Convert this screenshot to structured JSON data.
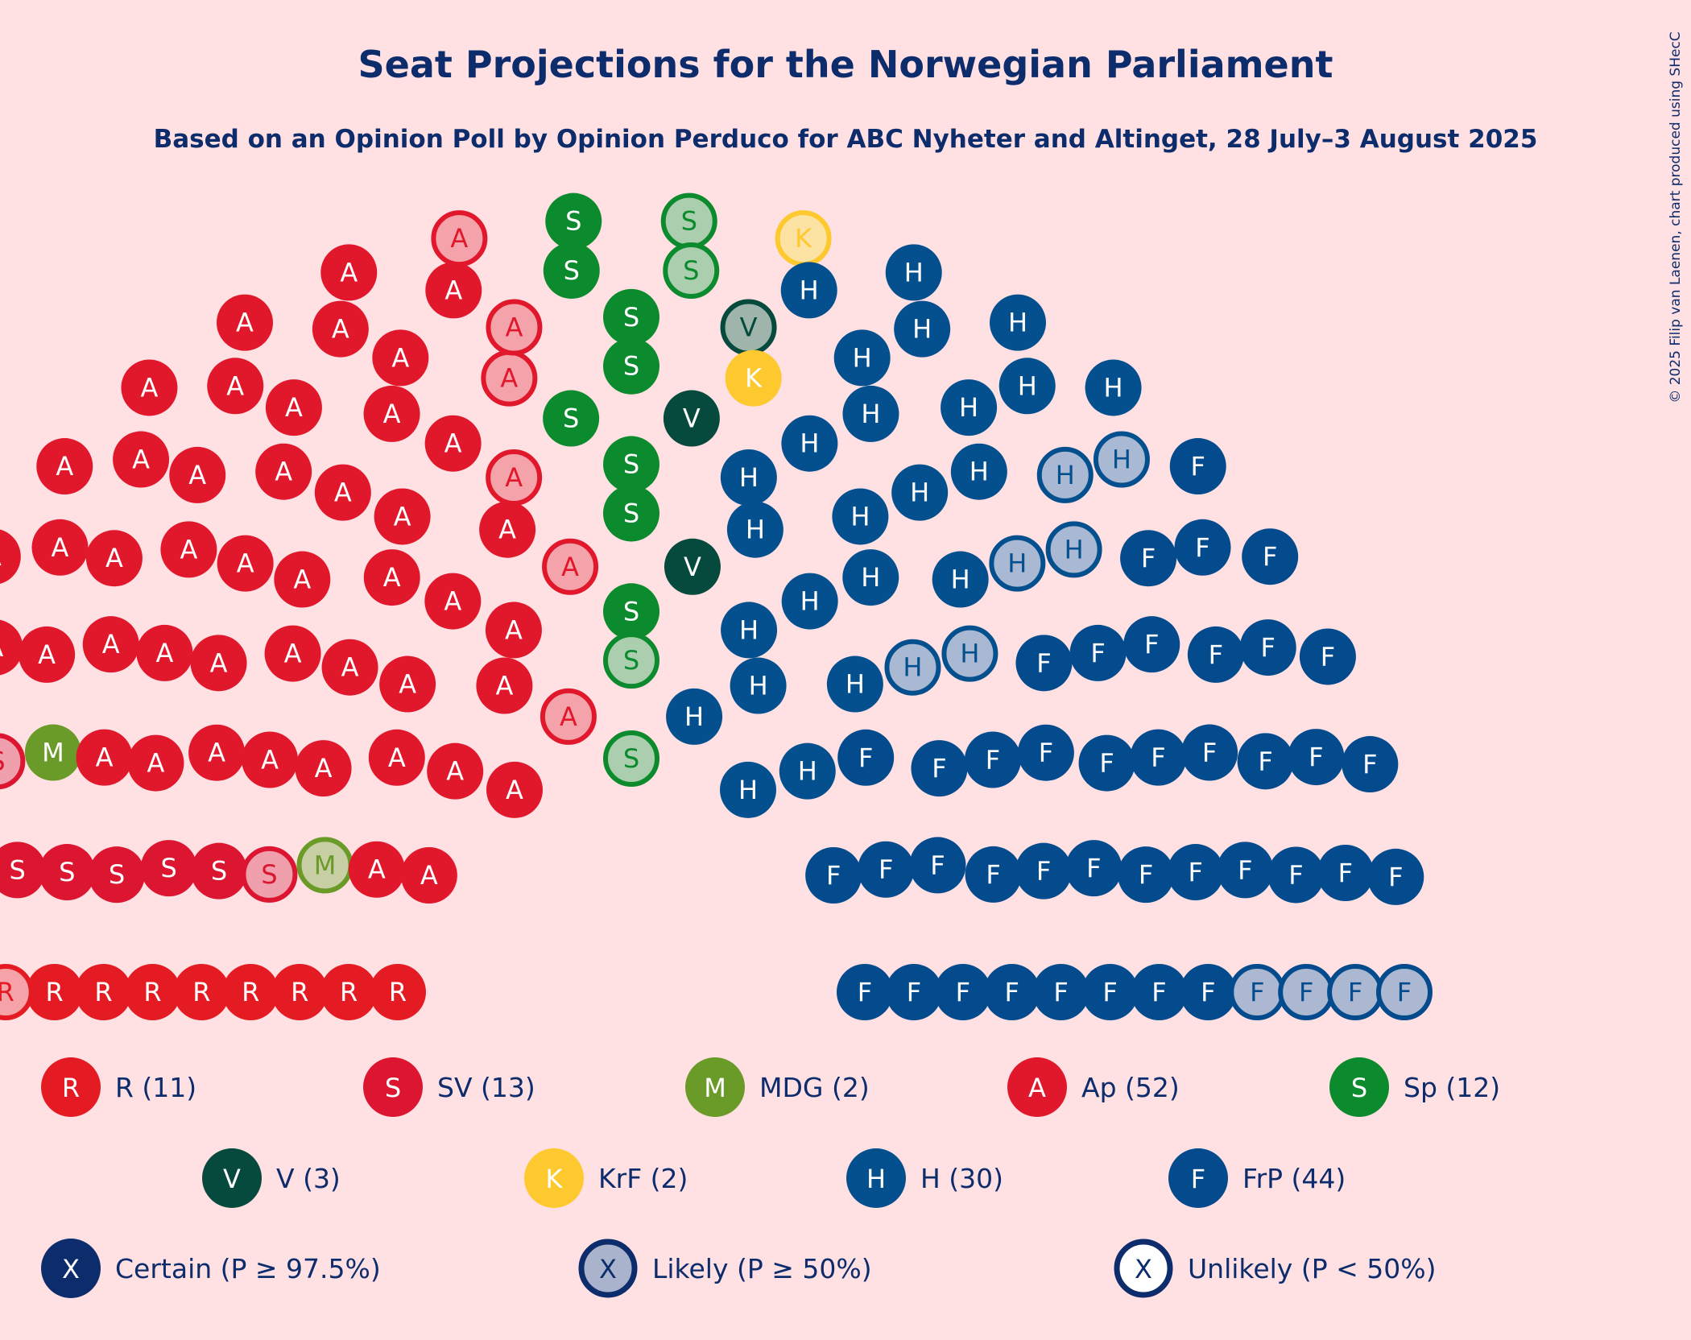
{
  "chart_data": {
    "type": "parliament",
    "title": "Seat Projections for the Norwegian Parliament",
    "subtitle": "Based on an Opinion Poll by Opinion Perduco for ABC Nyheter and Altinget, 28 July–3 August 2025",
    "copyright": "© 2025 Filip van Laenen, chart produced using SHecC",
    "total_seats": 169,
    "parties": [
      {
        "code": "R",
        "name": "R",
        "seats": 11,
        "likely": 2,
        "unlikely": 0,
        "color": "#E41B23",
        "light": "#F5A3A8"
      },
      {
        "code": "S",
        "name": "SV",
        "seats": 13,
        "likely": 3,
        "unlikely": 0,
        "color": "#DC1530",
        "light": "#F0A0AC"
      },
      {
        "code": "M",
        "name": "MDG",
        "seats": 2,
        "likely": 1,
        "unlikely": 0,
        "color": "#6A9A27",
        "light": "#C8CFA4"
      },
      {
        "code": "A",
        "name": "Ap",
        "seats": 52,
        "likely": 6,
        "unlikely": 0,
        "color": "#E1182C",
        "light": "#F5A3AB"
      },
      {
        "code": "S",
        "name": "Sp",
        "seats": 12,
        "likely": 4,
        "unlikely": 0,
        "color": "#0C8A2E",
        "light": "#ABCFAE"
      },
      {
        "code": "V",
        "name": "V",
        "seats": 3,
        "likely": 1,
        "unlikely": 0,
        "color": "#054A3C",
        "light": "#9FB5AC"
      },
      {
        "code": "K",
        "name": "KrF",
        "seats": 2,
        "likely": 1,
        "unlikely": 0,
        "color": "#FDC92E",
        "light": "#FCE3A3"
      },
      {
        "code": "H",
        "name": "H",
        "seats": 30,
        "likely": 6,
        "unlikely": 0,
        "color": "#04508F",
        "light": "#AAB9D3"
      },
      {
        "code": "F",
        "name": "FrP",
        "seats": 44,
        "likely": 4,
        "unlikely": 0,
        "color": "#034B8D",
        "light": "#ACB8D2"
      }
    ],
    "legend_parties": [
      {
        "code": "R",
        "label": "R (11)",
        "color": "#E41B23"
      },
      {
        "code": "S",
        "label": "SV (13)",
        "color": "#DC1530"
      },
      {
        "code": "M",
        "label": "MDG (2)",
        "color": "#6A9A27"
      },
      {
        "code": "A",
        "label": "Ap (52)",
        "color": "#E1182C"
      },
      {
        "code": "S",
        "label": "Sp (12)",
        "color": "#0C8A2E"
      },
      {
        "code": "V",
        "label": "V (3)",
        "color": "#054A3C"
      },
      {
        "code": "K",
        "label": "KrF (2)",
        "color": "#FDC92E"
      },
      {
        "code": "H",
        "label": "H (30)",
        "color": "#04508F"
      },
      {
        "code": "F",
        "label": "FrP (44)",
        "color": "#034B8D"
      }
    ],
    "legend_certainty": [
      {
        "code": "X",
        "label": "Certain (P ≥ 97.5%)",
        "style": "certain"
      },
      {
        "code": "X",
        "label": "Likely (P ≥ 50%)",
        "style": "likely"
      },
      {
        "code": "X",
        "label": "Unlikely (P < 50%)",
        "style": "unlikely"
      }
    ],
    "legend_color": "#0D2C6C",
    "background": "#FFE0E3"
  }
}
